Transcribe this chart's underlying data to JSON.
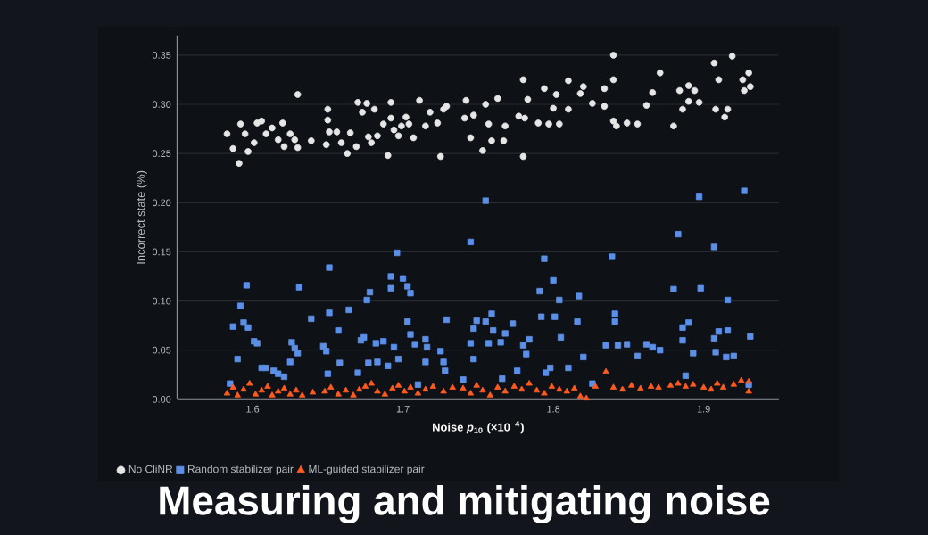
{
  "chart_data": {
    "type": "scatter",
    "title": "Measuring and mitigating noise",
    "xlabel": "Noise *p*$_{10}$ (×10$^{−4}$)",
    "ylabel": "Incorrect state (%)",
    "xlim": [
      1.55,
      1.95
    ],
    "xticks": [
      1.6,
      1.7,
      1.8,
      1.9
    ],
    "ylim": [
      0,
      0.37
    ],
    "yticks": [
      {
        "value": 0,
        "label": "0.00"
      },
      {
        "value": 0.05,
        "label": "0.05"
      },
      {
        "value": 0.1,
        "label": "0.10"
      },
      {
        "value": 0.15,
        "label": "0.15"
      },
      {
        "value": 0.2,
        "label": "0.20"
      },
      {
        "value": 0.25,
        "label": "0.25"
      },
      {
        "value": 0.3,
        "label": "0.30"
      },
      {
        "value": 0.35,
        "label": "0.35"
      }
    ],
    "grid": "y",
    "legend": "bottom",
    "series": [
      {
        "name": "No CliNR",
        "color": "#e6e6e6",
        "marker": "circle",
        "x": [
          1.583,
          1.587,
          1.591,
          1.592,
          1.595,
          1.597,
          1.601,
          1.603,
          1.606,
          1.609,
          1.613,
          1.617,
          1.62,
          1.621,
          1.625,
          1.628,
          1.63,
          1.63,
          1.639,
          1.649,
          1.65,
          1.65,
          1.651,
          1.656,
          1.659,
          1.663,
          1.665,
          1.669,
          1.67,
          1.673,
          1.676,
          1.677,
          1.679,
          1.681,
          1.683,
          1.687,
          1.69,
          1.692,
          1.692,
          1.694,
          1.697,
          1.699,
          1.702,
          1.704,
          1.707,
          1.711,
          1.715,
          1.718,
          1.723,
          1.725,
          1.727,
          1.729,
          1.742,
          1.741,
          1.745,
          1.747,
          1.753,
          1.755,
          1.757,
          1.759,
          1.763,
          1.767,
          1.768,
          1.777,
          1.78,
          1.78,
          1.781,
          1.783,
          1.79,
          1.794,
          1.797,
          1.8,
          1.802,
          1.804,
          1.81,
          1.81,
          1.818,
          1.82,
          1.826,
          1.834,
          1.834,
          1.84,
          1.84,
          1.84,
          1.842,
          1.849,
          1.856,
          1.862,
          1.866,
          1.871,
          1.88,
          1.884,
          1.886,
          1.89,
          1.89,
          1.894,
          1.897,
          1.907,
          1.908,
          1.91,
          1.914,
          1.916,
          1.919,
          1.926,
          1.927,
          1.93,
          1.931
        ],
        "values": [
          0.27,
          0.255,
          0.24,
          0.28,
          0.27,
          0.252,
          0.261,
          0.281,
          0.283,
          0.27,
          0.276,
          0.264,
          0.281,
          0.257,
          0.27,
          0.264,
          0.31,
          0.256,
          0.263,
          0.259,
          0.295,
          0.284,
          0.272,
          0.272,
          0.261,
          0.25,
          0.271,
          0.257,
          0.302,
          0.292,
          0.301,
          0.267,
          0.261,
          0.295,
          0.268,
          0.28,
          0.248,
          0.302,
          0.286,
          0.274,
          0.268,
          0.278,
          0.287,
          0.28,
          0.266,
          0.304,
          0.278,
          0.292,
          0.281,
          0.247,
          0.295,
          0.298,
          0.304,
          0.286,
          0.266,
          0.289,
          0.253,
          0.3,
          0.28,
          0.263,
          0.306,
          0.263,
          0.278,
          0.288,
          0.325,
          0.247,
          0.286,
          0.305,
          0.281,
          0.316,
          0.28,
          0.296,
          0.31,
          0.28,
          0.324,
          0.295,
          0.311,
          0.318,
          0.301,
          0.316,
          0.298,
          0.35,
          0.325,
          0.283,
          0.278,
          0.281,
          0.28,
          0.299,
          0.312,
          0.332,
          0.278,
          0.314,
          0.295,
          0.319,
          0.303,
          0.314,
          0.302,
          0.342,
          0.295,
          0.325,
          0.287,
          0.295,
          0.349,
          0.325,
          0.314,
          0.332,
          0.318
        ]
      },
      {
        "name": "Random stabilizer pair",
        "color": "#5b8fe8",
        "marker": "square",
        "x": [
          1.585,
          1.587,
          1.59,
          1.592,
          1.594,
          1.596,
          1.597,
          1.601,
          1.603,
          1.606,
          1.609,
          1.614,
          1.617,
          1.621,
          1.625,
          1.626,
          1.628,
          1.63,
          1.631,
          1.639,
          1.647,
          1.649,
          1.65,
          1.651,
          1.651,
          1.657,
          1.658,
          1.664,
          1.67,
          1.672,
          1.674,
          1.676,
          1.677,
          1.678,
          1.682,
          1.683,
          1.687,
          1.69,
          1.692,
          1.692,
          1.694,
          1.696,
          1.697,
          1.7,
          1.703,
          1.705,
          1.703,
          1.705,
          1.708,
          1.71,
          1.715,
          1.716,
          1.715,
          1.725,
          1.727,
          1.728,
          1.729,
          1.74,
          1.745,
          1.745,
          1.747,
          1.747,
          1.749,
          1.755,
          1.755,
          1.757,
          1.759,
          1.76,
          1.765,
          1.766,
          1.768,
          1.773,
          1.776,
          1.78,
          1.782,
          1.784,
          1.791,
          1.792,
          1.794,
          1.795,
          1.798,
          1.8,
          1.801,
          1.804,
          1.805,
          1.81,
          1.817,
          1.816,
          1.82,
          1.826,
          1.835,
          1.839,
          1.841,
          1.841,
          1.843,
          1.849,
          1.856,
          1.862,
          1.866,
          1.871,
          1.88,
          1.883,
          1.886,
          1.886,
          1.888,
          1.89,
          1.893,
          1.897,
          1.898,
          1.907,
          1.907,
          1.908,
          1.91,
          1.915,
          1.916,
          1.916,
          1.92,
          1.927,
          1.931,
          1.93
        ],
        "values": [
          0.016,
          0.074,
          0.041,
          0.095,
          0.078,
          0.116,
          0.073,
          0.059,
          0.057,
          0.032,
          0.032,
          0.029,
          0.026,
          0.023,
          0.038,
          0.058,
          0.052,
          0.047,
          0.114,
          0.082,
          0.054,
          0.049,
          0.026,
          0.134,
          0.088,
          0.07,
          0.037,
          0.091,
          0.027,
          0.06,
          0.063,
          0.101,
          0.037,
          0.109,
          0.057,
          0.038,
          0.059,
          0.034,
          0.125,
          0.113,
          0.053,
          0.149,
          0.041,
          0.123,
          0.115,
          0.108,
          0.079,
          0.066,
          0.056,
          0.015,
          0.061,
          0.053,
          0.038,
          0.049,
          0.038,
          0.029,
          0.081,
          0.02,
          0.16,
          0.057,
          0.041,
          0.072,
          0.08,
          0.202,
          0.079,
          0.057,
          0.087,
          0.07,
          0.058,
          0.021,
          0.067,
          0.077,
          0.029,
          0.055,
          0.046,
          0.061,
          0.11,
          0.084,
          0.143,
          0.027,
          0.032,
          0.121,
          0.084,
          0.101,
          0.063,
          0.032,
          0.105,
          0.079,
          0.043,
          0.016,
          0.055,
          0.145,
          0.087,
          0.079,
          0.055,
          0.056,
          0.044,
          0.056,
          0.053,
          0.05,
          0.112,
          0.168,
          0.073,
          0.06,
          0.024,
          0.078,
          0.047,
          0.206,
          0.113,
          0.155,
          0.062,
          0.048,
          0.069,
          0.043,
          0.07,
          0.101,
          0.044,
          0.212,
          0.064,
          0.015
        ]
      },
      {
        "name": "ML-guided stabilizer pair",
        "color": "#ff5a1f",
        "marker": "triangle",
        "x": [
          1.583,
          1.587,
          1.59,
          1.594,
          1.598,
          1.602,
          1.606,
          1.61,
          1.613,
          1.617,
          1.621,
          1.625,
          1.629,
          1.633,
          1.64,
          1.648,
          1.652,
          1.657,
          1.662,
          1.667,
          1.671,
          1.675,
          1.679,
          1.683,
          1.688,
          1.693,
          1.697,
          1.701,
          1.705,
          1.71,
          1.715,
          1.72,
          1.727,
          1.733,
          1.74,
          1.745,
          1.749,
          1.753,
          1.758,
          1.763,
          1.768,
          1.774,
          1.779,
          1.784,
          1.789,
          1.794,
          1.799,
          1.804,
          1.809,
          1.814,
          1.818,
          1.822,
          1.828,
          1.835,
          1.84,
          1.846,
          1.852,
          1.858,
          1.865,
          1.87,
          1.878,
          1.883,
          1.888,
          1.893,
          1.9,
          1.905,
          1.909,
          1.913,
          1.92,
          1.925,
          1.93,
          1.93
        ],
        "values": [
          0.006,
          0.012,
          0.004,
          0.01,
          0.016,
          0.005,
          0.009,
          0.013,
          0.004,
          0.008,
          0.011,
          0.005,
          0.009,
          0.004,
          0.007,
          0.008,
          0.012,
          0.005,
          0.009,
          0.004,
          0.01,
          0.013,
          0.016,
          0.008,
          0.005,
          0.011,
          0.014,
          0.008,
          0.012,
          0.006,
          0.01,
          0.013,
          0.008,
          0.012,
          0.011,
          0.006,
          0.014,
          0.009,
          0.004,
          0.012,
          0.008,
          0.013,
          0.01,
          0.016,
          0.009,
          0.006,
          0.013,
          0.01,
          0.008,
          0.011,
          0.003,
          0.001,
          0.013,
          0.028,
          0.012,
          0.01,
          0.014,
          0.011,
          0.013,
          0.012,
          0.014,
          0.016,
          0.013,
          0.015,
          0.012,
          0.01,
          0.016,
          0.012,
          0.015,
          0.019,
          0.018,
          0.008
        ]
      }
    ]
  }
}
